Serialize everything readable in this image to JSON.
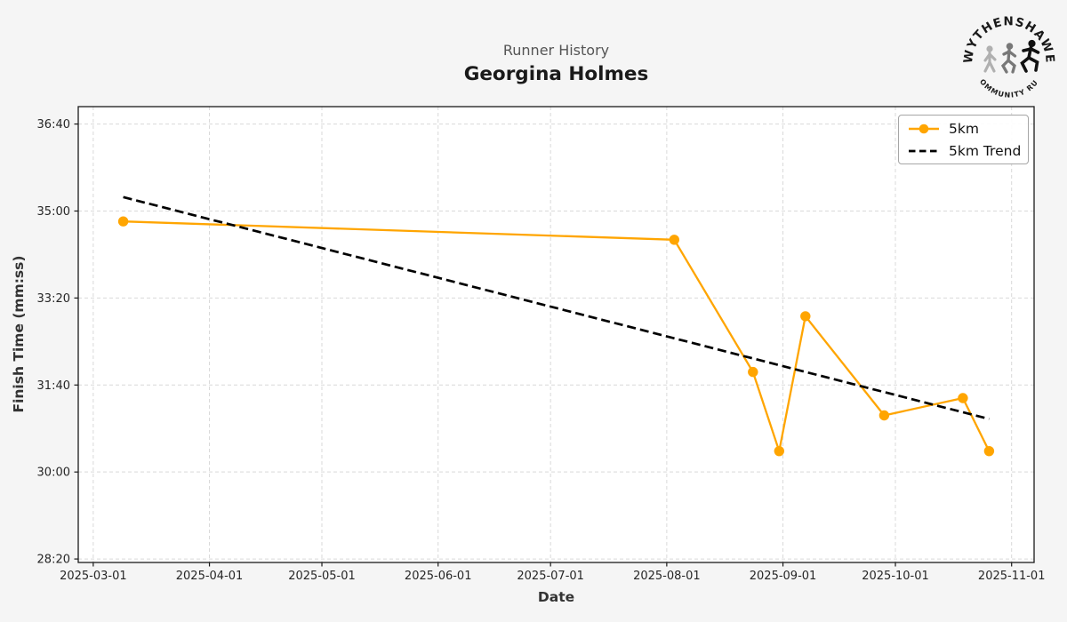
{
  "header": {
    "subtitle": "Runner History",
    "title": "Georgina Holmes"
  },
  "logo": {
    "top_text": "WYTHENSHAWE",
    "bottom_text": "COMMUNITY RUN"
  },
  "chart_data": {
    "type": "line",
    "subtitle": "Runner History",
    "title": "Georgina Holmes",
    "xlabel": "Date",
    "ylabel": "Finish Time (mm:ss)",
    "grid": true,
    "legend_position": "top-right",
    "x_ticks": [
      "2025-03-01",
      "2025-04-01",
      "2025-05-01",
      "2025-06-01",
      "2025-07-01",
      "2025-08-01",
      "2025-09-01",
      "2025-10-01",
      "2025-11-01"
    ],
    "y_ticks": [
      {
        "label": "36:40",
        "seconds": 2200
      },
      {
        "label": "35:00",
        "seconds": 2100
      },
      {
        "label": "33:20",
        "seconds": 2000
      },
      {
        "label": "31:40",
        "seconds": 1900
      },
      {
        "label": "30:00",
        "seconds": 1800
      },
      {
        "label": "28:20",
        "seconds": 1700
      }
    ],
    "xlim_days_from_2025_03_01": [
      -4,
      251
    ],
    "ylim_seconds": [
      1696,
      2220
    ],
    "colors": {
      "series": "#FFA500",
      "trend": "#000000",
      "grid": "#d9d9d9",
      "plot_background": "#ffffff",
      "figure_background": "#f5f5f5"
    },
    "series": [
      {
        "name": "5km",
        "color": "#FFA500",
        "line_style": "solid",
        "marker": "circle",
        "points": [
          {
            "date": "2025-03-09",
            "time": "34:48"
          },
          {
            "date": "2025-08-03",
            "time": "34:27"
          },
          {
            "date": "2025-08-24",
            "time": "31:55"
          },
          {
            "date": "2025-08-31",
            "time": "30:24"
          },
          {
            "date": "2025-09-07",
            "time": "32:59"
          },
          {
            "date": "2025-09-28",
            "time": "31:05"
          },
          {
            "date": "2025-10-19",
            "time": "31:25"
          },
          {
            "date": "2025-10-26",
            "time": "30:24"
          }
        ]
      },
      {
        "name": "5km Trend",
        "color": "#000000",
        "line_style": "dashed",
        "marker": "none",
        "points": [
          {
            "date": "2025-03-09",
            "time": "35:16"
          },
          {
            "date": "2025-10-26",
            "time": "31:01"
          }
        ]
      }
    ]
  }
}
